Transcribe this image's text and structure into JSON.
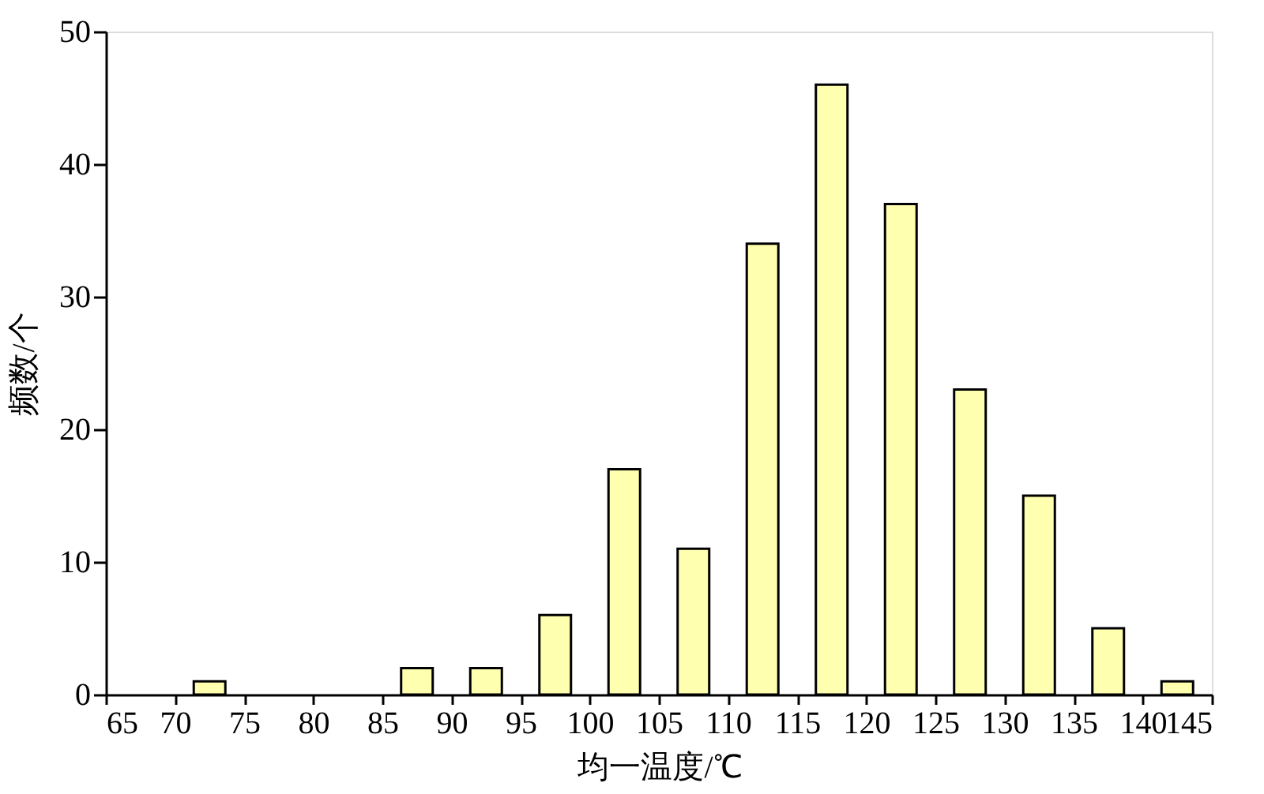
{
  "chart_data": {
    "type": "bar",
    "xlabel": "均一温度/℃",
    "ylabel": "频数/个",
    "x": [
      72.5,
      87.5,
      92.5,
      97.5,
      102.5,
      107.5,
      112.5,
      117.5,
      122.5,
      127.5,
      132.5,
      137.5,
      142.5
    ],
    "values": [
      1,
      2,
      2,
      6,
      17,
      11,
      34,
      46,
      37,
      23,
      15,
      5,
      1
    ],
    "color": "#ffffb0",
    "xlim": [
      65,
      145
    ],
    "xticks": [
      65,
      70,
      75,
      80,
      85,
      90,
      95,
      100,
      105,
      110,
      115,
      120,
      125,
      130,
      135,
      140,
      145
    ],
    "ylim": [
      0,
      50
    ],
    "yticks": [
      0,
      10,
      20,
      30,
      40,
      50
    ],
    "grid": false
  }
}
